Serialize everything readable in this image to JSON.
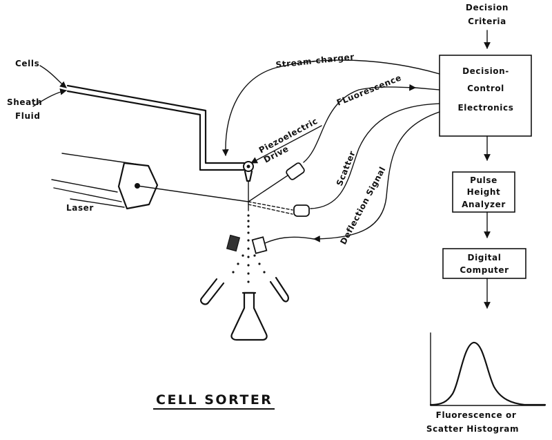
{
  "labels": {
    "decision_criteria_1": "Decision",
    "decision_criteria_2": "Criteria",
    "cells": "Cells",
    "sheath_1": "Sheath",
    "sheath_2": "Fluid",
    "stream_charger": "Stream-charger",
    "fluorescence": "FLuorescence",
    "piezo_1": "Piezoelectric",
    "piezo_2": "Drive",
    "scatter": "Scatter",
    "deflection": "Deflection Signal",
    "laser": "Laser",
    "title": "CELL   SORTER"
  },
  "boxes": {
    "dce_1": "Decision-",
    "dce_2": "Control",
    "dce_3": "Electronics",
    "pha_1": "Pulse",
    "pha_2": "Height",
    "pha_3": "Analyzer",
    "dc_1": "Digital",
    "dc_2": "Computer"
  },
  "histogram": {
    "caption_1": "Fluorescence or",
    "caption_2": "Scatter Histogram"
  }
}
